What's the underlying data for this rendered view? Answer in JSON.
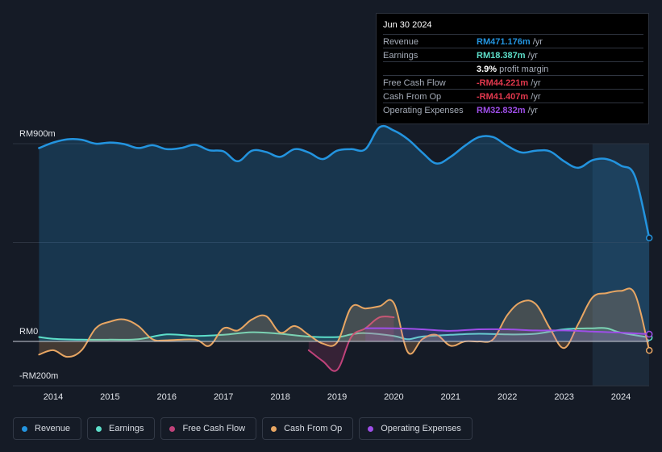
{
  "tooltip": {
    "date": "Jun 30 2024",
    "rows": [
      {
        "label": "Revenue",
        "value": "RM471.176m",
        "unit": "/yr",
        "color": "#2394df"
      },
      {
        "label": "Earnings",
        "value": "RM18.387m",
        "unit": "/yr",
        "color": "#5ddfca"
      },
      {
        "label": "",
        "value": "3.9%",
        "unit": "profit margin",
        "color": "#ffffff"
      },
      {
        "label": "Free Cash Flow",
        "value": "-RM44.221m",
        "unit": "/yr",
        "color": "#e2384d"
      },
      {
        "label": "Cash From Op",
        "value": "-RM41.407m",
        "unit": "/yr",
        "color": "#e2384d"
      },
      {
        "label": "Operating Expenses",
        "value": "RM32.832m",
        "unit": "/yr",
        "color": "#9e4ee8"
      }
    ]
  },
  "chart_data": {
    "type": "area",
    "ylabels": {
      "top": "RM900m",
      "zero": "RM0",
      "bottom": "-RM200m"
    },
    "ylim": [
      -200,
      900
    ],
    "xlim": [
      2013.7,
      2024.5
    ],
    "xticks": [
      "2014",
      "2015",
      "2016",
      "2017",
      "2018",
      "2019",
      "2020",
      "2021",
      "2022",
      "2023",
      "2024"
    ],
    "forecast_from": 2023.5,
    "series": [
      {
        "name": "Revenue",
        "color": "#2394df",
        "points": [
          [
            2013.75,
            880
          ],
          [
            2014.0,
            905
          ],
          [
            2014.25,
            920
          ],
          [
            2014.5,
            918
          ],
          [
            2014.75,
            900
          ],
          [
            2015.0,
            905
          ],
          [
            2015.25,
            898
          ],
          [
            2015.5,
            880
          ],
          [
            2015.75,
            893
          ],
          [
            2016.0,
            875
          ],
          [
            2016.25,
            880
          ],
          [
            2016.5,
            895
          ],
          [
            2016.75,
            870
          ],
          [
            2017.0,
            865
          ],
          [
            2017.25,
            820
          ],
          [
            2017.5,
            868
          ],
          [
            2017.75,
            862
          ],
          [
            2018.0,
            840
          ],
          [
            2018.25,
            875
          ],
          [
            2018.5,
            860
          ],
          [
            2018.75,
            830
          ],
          [
            2019.0,
            868
          ],
          [
            2019.25,
            875
          ],
          [
            2019.5,
            875
          ],
          [
            2019.75,
            975
          ],
          [
            2020.0,
            960
          ],
          [
            2020.25,
            920
          ],
          [
            2020.5,
            860
          ],
          [
            2020.75,
            810
          ],
          [
            2021.0,
            840
          ],
          [
            2021.25,
            890
          ],
          [
            2021.5,
            930
          ],
          [
            2021.75,
            930
          ],
          [
            2022.0,
            890
          ],
          [
            2022.25,
            860
          ],
          [
            2022.5,
            868
          ],
          [
            2022.75,
            865
          ],
          [
            2023.0,
            820
          ],
          [
            2023.25,
            790
          ],
          [
            2023.5,
            825
          ],
          [
            2023.75,
            830
          ],
          [
            2024.0,
            800
          ],
          [
            2024.25,
            750
          ],
          [
            2024.5,
            471
          ]
        ]
      },
      {
        "name": "Earnings",
        "color": "#5ddfca",
        "points": [
          [
            2013.75,
            20
          ],
          [
            2014.0,
            12
          ],
          [
            2014.5,
            8
          ],
          [
            2015.0,
            8
          ],
          [
            2015.5,
            10
          ],
          [
            2016.0,
            32
          ],
          [
            2016.5,
            25
          ],
          [
            2017.0,
            30
          ],
          [
            2017.5,
            42
          ],
          [
            2018.0,
            35
          ],
          [
            2018.5,
            22
          ],
          [
            2019.0,
            20
          ],
          [
            2019.25,
            32
          ],
          [
            2019.5,
            38
          ],
          [
            2020.0,
            25
          ],
          [
            2020.25,
            10
          ],
          [
            2020.5,
            22
          ],
          [
            2021.0,
            30
          ],
          [
            2021.5,
            35
          ],
          [
            2022.0,
            32
          ],
          [
            2022.5,
            35
          ],
          [
            2023.0,
            55
          ],
          [
            2023.5,
            60
          ],
          [
            2023.75,
            60
          ],
          [
            2024.0,
            40
          ],
          [
            2024.5,
            18
          ]
        ]
      },
      {
        "name": "Free Cash Flow",
        "color": "#c0427a",
        "points": [
          [
            2018.5,
            -40
          ],
          [
            2018.75,
            -90
          ],
          [
            2019.0,
            -130
          ],
          [
            2019.25,
            20
          ],
          [
            2019.5,
            60
          ],
          [
            2019.75,
            110
          ],
          [
            2020.0,
            110
          ]
        ]
      },
      {
        "name": "Cash From Op",
        "color": "#e8a663",
        "points": [
          [
            2013.75,
            -60
          ],
          [
            2014.0,
            -40
          ],
          [
            2014.25,
            -70
          ],
          [
            2014.5,
            -40
          ],
          [
            2014.75,
            60
          ],
          [
            2015.0,
            90
          ],
          [
            2015.25,
            100
          ],
          [
            2015.5,
            70
          ],
          [
            2015.75,
            10
          ],
          [
            2016.0,
            5
          ],
          [
            2016.5,
            8
          ],
          [
            2016.75,
            -20
          ],
          [
            2017.0,
            60
          ],
          [
            2017.25,
            50
          ],
          [
            2017.5,
            100
          ],
          [
            2017.75,
            115
          ],
          [
            2018.0,
            40
          ],
          [
            2018.25,
            70
          ],
          [
            2018.5,
            30
          ],
          [
            2018.75,
            -10
          ],
          [
            2019.0,
            -5
          ],
          [
            2019.25,
            155
          ],
          [
            2019.5,
            150
          ],
          [
            2019.75,
            160
          ],
          [
            2020.0,
            175
          ],
          [
            2020.25,
            -50
          ],
          [
            2020.5,
            10
          ],
          [
            2020.75,
            30
          ],
          [
            2021.0,
            -20
          ],
          [
            2021.25,
            0
          ],
          [
            2021.5,
            0
          ],
          [
            2021.75,
            10
          ],
          [
            2022.0,
            120
          ],
          [
            2022.25,
            180
          ],
          [
            2022.5,
            170
          ],
          [
            2022.75,
            60
          ],
          [
            2023.0,
            -30
          ],
          [
            2023.25,
            80
          ],
          [
            2023.5,
            200
          ],
          [
            2023.75,
            220
          ],
          [
            2024.0,
            230
          ],
          [
            2024.25,
            215
          ],
          [
            2024.5,
            -41
          ]
        ]
      },
      {
        "name": "Operating Expenses",
        "color": "#9e4ee8",
        "points": [
          [
            2019.5,
            60
          ],
          [
            2020.0,
            60
          ],
          [
            2020.5,
            55
          ],
          [
            2021.0,
            48
          ],
          [
            2021.5,
            55
          ],
          [
            2022.0,
            55
          ],
          [
            2022.5,
            50
          ],
          [
            2023.0,
            50
          ],
          [
            2023.5,
            45
          ],
          [
            2024.0,
            40
          ],
          [
            2024.5,
            33
          ]
        ]
      }
    ]
  },
  "legend": [
    {
      "label": "Revenue",
      "color": "#2394df"
    },
    {
      "label": "Earnings",
      "color": "#5ddfca"
    },
    {
      "label": "Free Cash Flow",
      "color": "#c0427a"
    },
    {
      "label": "Cash From Op",
      "color": "#e8a663"
    },
    {
      "label": "Operating Expenses",
      "color": "#9e4ee8"
    }
  ]
}
